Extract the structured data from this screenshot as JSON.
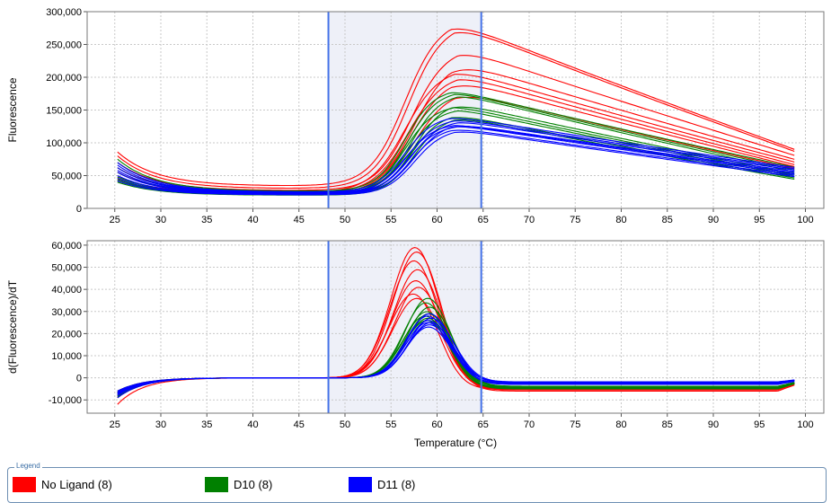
{
  "chart_data": [
    {
      "type": "line",
      "ylabel": "Fluorescence",
      "xlim": [
        22,
        102
      ],
      "ylim": [
        0,
        300000
      ],
      "x_ticks": [
        "25",
        "30",
        "35",
        "40",
        "45",
        "50",
        "55",
        "60",
        "65",
        "70",
        "75",
        "80",
        "85",
        "90",
        "95",
        "100"
      ],
      "y_ticks": [
        "0",
        "50,000",
        "100,000",
        "150,000",
        "200,000",
        "250,000",
        "300,000"
      ],
      "grid": true,
      "highlight_region": [
        48.2,
        64.8
      ],
      "series_groups": [
        {
          "group": "No Ligand (8)",
          "color": "#ff0000",
          "start": [
            86000,
            80000,
            70000,
            62000,
            55000,
            48000,
            45000,
            42000
          ],
          "base": [
            34000,
            30000,
            27000,
            25000,
            24000,
            23000,
            22000,
            21000
          ],
          "peak": [
            290000,
            284000,
            247000,
            229000,
            215000,
            206000,
            201000,
            182000
          ],
          "end": [
            89000,
            86000,
            80000,
            74000,
            70000,
            66000,
            63000,
            60000
          ]
        },
        {
          "group": "D10 (8)",
          "color": "#008000",
          "start": [
            75000,
            70000,
            62000,
            55000,
            48000,
            44000,
            42000,
            40000
          ],
          "base": [
            26000,
            25000,
            24000,
            23000,
            22000,
            21500,
            21000,
            20000
          ],
          "peak": [
            183000,
            180000,
            176000,
            164000,
            158000,
            153000,
            146000,
            142000
          ],
          "end": [
            62000,
            58000,
            55000,
            52000,
            50000,
            48000,
            46000,
            44000
          ]
        },
        {
          "group": "D11 (8)",
          "color": "#0000ff",
          "start": [
            70000,
            66000,
            62000,
            58000,
            55000,
            50000,
            46000,
            42000
          ],
          "base": [
            25000,
            24000,
            23500,
            23000,
            22000,
            21500,
            21000,
            20500
          ],
          "peak": [
            142000,
            138000,
            135000,
            132000,
            130000,
            128000,
            125000,
            122000
          ],
          "end": [
            62000,
            60000,
            58000,
            56000,
            54000,
            52000,
            50000,
            48000
          ]
        }
      ]
    },
    {
      "type": "line",
      "xlabel": "Temperature (°C)",
      "ylabel": "d(Fluorescence)/dT",
      "xlim": [
        22,
        102
      ],
      "ylim": [
        -16000,
        62000
      ],
      "x_ticks": [
        "25",
        "30",
        "35",
        "40",
        "45",
        "50",
        "55",
        "60",
        "65",
        "70",
        "75",
        "80",
        "85",
        "90",
        "95",
        "100"
      ],
      "y_ticks": [
        "-10,000",
        "0",
        "10,000",
        "20,000",
        "30,000",
        "40,000",
        "50,000",
        "60,000"
      ],
      "grid": true,
      "highlight_region": [
        48.2,
        64.8
      ],
      "series_groups": [
        {
          "group": "No Ligand (8)",
          "color": "#ff0000",
          "peak_x": [
            57.6,
            57.8,
            57.5,
            57.9,
            57.7,
            58.0,
            57.4,
            57.8
          ],
          "peak_y": [
            59000,
            57000,
            53000,
            49000,
            44000,
            41000,
            38000,
            36000
          ],
          "tail": [
            -5000,
            -5500,
            -4500,
            -6000,
            -5000,
            -4800,
            -5200,
            -4200
          ],
          "start": [
            -12000,
            -9000,
            -7000,
            -6000,
            -8000,
            -7500,
            -6500,
            -8500
          ]
        },
        {
          "group": "D10 (8)",
          "color": "#008000",
          "peak_x": [
            59.0,
            58.8,
            59.2,
            58.9,
            59.1,
            58.7,
            59.0,
            58.9
          ],
          "peak_y": [
            36000,
            34000,
            32000,
            30000,
            29000,
            28000,
            27000,
            26000
          ],
          "tail": [
            -4000,
            -4500,
            -3800,
            -5000,
            -4200,
            -4600,
            -3900,
            -4400
          ],
          "start": [
            -9000,
            -8000,
            -7000,
            -6500,
            -7500,
            -8500,
            -6000,
            -7000
          ]
        },
        {
          "group": "D11 (8)",
          "color": "#0000ff",
          "peak_x": [
            59.2,
            59.0,
            59.4,
            59.1,
            59.3,
            59.0,
            59.2,
            59.1
          ],
          "peak_y": [
            29000,
            28000,
            27000,
            26000,
            25000,
            25000,
            24000,
            23000
          ],
          "tail": [
            -2000,
            -2500,
            -1800,
            -3000,
            -2200,
            -2600,
            -1900,
            -2400
          ],
          "start": [
            -8000,
            -7500,
            -6500,
            -7000,
            -9000,
            -6000,
            -7000,
            -8000
          ]
        }
      ]
    }
  ],
  "legend": {
    "title": "Legend",
    "items": [
      {
        "label": "No Ligand (8)",
        "color": "#ff0000"
      },
      {
        "label": "D10 (8)",
        "color": "#008000"
      },
      {
        "label": "D11 (8)",
        "color": "#0000ff"
      }
    ]
  }
}
